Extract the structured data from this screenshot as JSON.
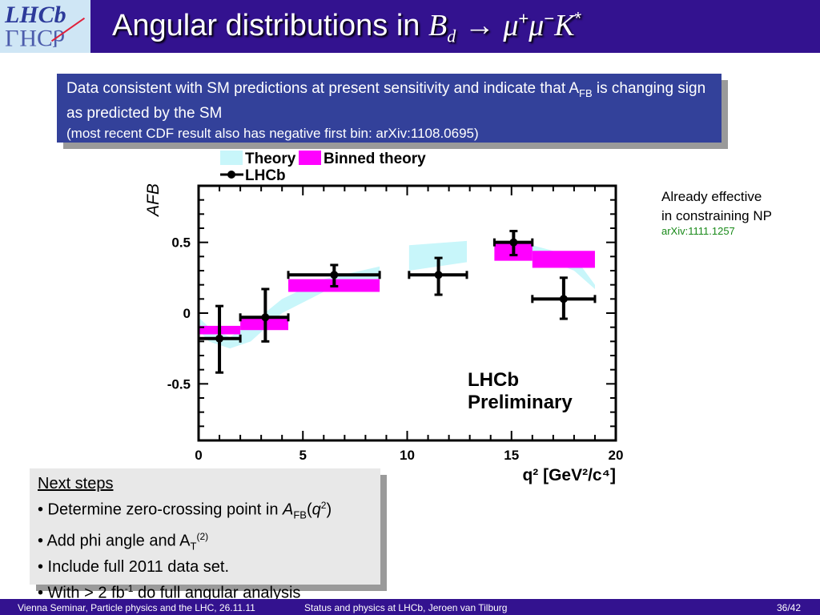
{
  "header": {
    "logo_text": "LHCb",
    "title_prefix": "Angular distributions in ",
    "title_B": "B",
    "title_sub": "d",
    "title_arrow": " → ",
    "title_mu": "μ",
    "title_plus": "+",
    "title_minus": "−",
    "title_K": "K",
    "title_star": "*"
  },
  "summary_box": {
    "line1a": "Data consistent with SM predictions at present sensitivity and indicate that A",
    "line1_sub": "FB",
    "line1b": " is changing sign as predicted by the SM",
    "line2": "(most recent CDF result also has negative first bin: arXiv:1108.0695)"
  },
  "side_note": {
    "line1": "Already effective",
    "line2": "in constraining NP",
    "ref": "arXiv:1111.1257"
  },
  "next_steps": {
    "heading": "Next steps",
    "item1a": "• Determine zero-crossing point in ",
    "item1_A": "A",
    "item1_sub": "FB",
    "item1_paren_open": "(",
    "item1_q": "q",
    "item1_sup": "2",
    "item1_paren_close": ")",
    "item2a": "• Add phi angle and A",
    "item2_sub": "T",
    "item2_sup": "(2)",
    "item3": "• Include full 2011 data set.",
    "item4a": "• With > 2 fb",
    "item4_sup": "-1",
    "item4b": " do full angular analysis"
  },
  "footer": {
    "left": "Vienna Seminar, Particle physics and the LHC, 26.11.11",
    "center": "Status and physics at LHCb, Jeroen van Tilburg",
    "page": "36/42"
  },
  "colors": {
    "header_bg": "#33128f",
    "theory": "#c8f6fa",
    "binned_theory": "#ff00ff",
    "data": "#000000",
    "box_bg": "#33419a",
    "ref_green": "#1a8a1a"
  },
  "chart_data": {
    "type": "scatter",
    "xlabel": "q² [GeV²/c⁴]",
    "ylabel": "A_FB",
    "xlim": [
      0,
      20
    ],
    "ylim": [
      -0.9,
      0.9
    ],
    "xticks": [
      "0",
      "5",
      "10",
      "15",
      "20"
    ],
    "yticks": [
      "-0.5",
      "0",
      "0.5"
    ],
    "legend": [
      "Theory",
      "Binned theory",
      "LHCb"
    ],
    "legend_placement": "top",
    "annotation": [
      "LHCb",
      "Preliminary"
    ],
    "lhcb": [
      {
        "x": 1.0,
        "xlo": 0,
        "xhi": 2,
        "y": -0.18,
        "ylo": -0.42,
        "yhi": 0.05
      },
      {
        "x": 3.2,
        "xlo": 2,
        "xhi": 4.3,
        "y": -0.03,
        "ylo": -0.2,
        "yhi": 0.17
      },
      {
        "x": 6.5,
        "xlo": 4.3,
        "xhi": 8.68,
        "y": 0.27,
        "ylo": 0.19,
        "yhi": 0.34
      },
      {
        "x": 11.5,
        "xlo": 10.09,
        "xhi": 12.86,
        "y": 0.27,
        "ylo": 0.13,
        "yhi": 0.39
      },
      {
        "x": 15.1,
        "xlo": 14.18,
        "xhi": 16,
        "y": 0.5,
        "ylo": 0.41,
        "yhi": 0.58
      },
      {
        "x": 17.5,
        "xlo": 16,
        "xhi": 19,
        "y": 0.1,
        "ylo": -0.04,
        "yhi": 0.25
      }
    ],
    "binned_theory": [
      {
        "xlo": 0,
        "xhi": 2,
        "ylo": -0.15,
        "yhi": -0.09
      },
      {
        "xlo": 2,
        "xhi": 4.3,
        "ylo": -0.12,
        "yhi": -0.03
      },
      {
        "xlo": 4.3,
        "xhi": 8.68,
        "ylo": 0.15,
        "yhi": 0.24
      },
      {
        "xlo": 14.18,
        "xhi": 16,
        "ylo": 0.37,
        "yhi": 0.5
      },
      {
        "xlo": 16,
        "xhi": 19,
        "ylo": 0.32,
        "yhi": 0.44
      }
    ],
    "theory_band": [
      {
        "x": [
          0,
          0.5,
          1.5,
          2.5,
          4,
          6,
          8.68
        ],
        "lo": [
          -0.12,
          -0.2,
          -0.25,
          -0.2,
          0.0,
          0.15,
          0.22
        ],
        "hi": [
          -0.03,
          -0.1,
          -0.17,
          -0.08,
          0.1,
          0.24,
          0.33
        ]
      },
      {
        "x": [
          10.09,
          12.86
        ],
        "lo": [
          0.3,
          0.36
        ],
        "hi": [
          0.48,
          0.51
        ]
      },
      {
        "x": [
          14.18,
          16,
          18,
          19
        ],
        "lo": [
          0.45,
          0.42,
          0.3,
          0.17
        ],
        "hi": [
          0.5,
          0.48,
          0.4,
          0.2
        ]
      }
    ]
  }
}
